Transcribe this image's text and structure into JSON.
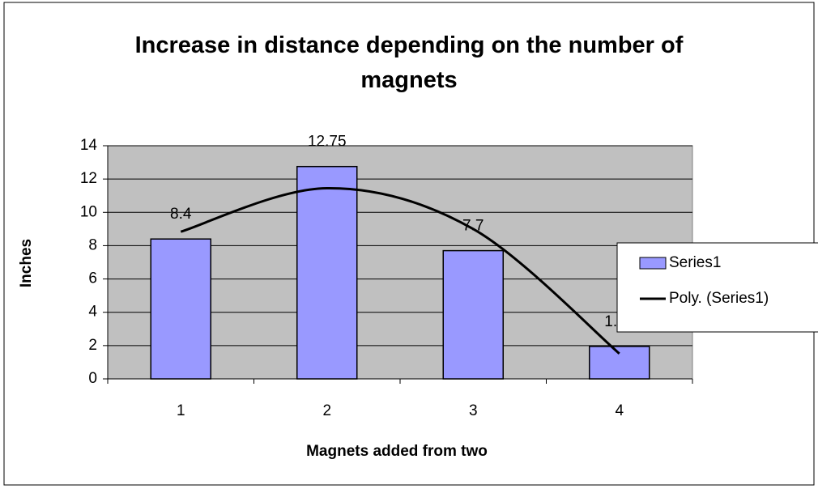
{
  "chart_data": {
    "type": "bar",
    "title": "Increase in distance depending on the number of magnets",
    "x_label": "Magnets added from two",
    "y_label": "Inches",
    "categories": [
      "1",
      "2",
      "3",
      "4"
    ],
    "series": [
      {
        "name": "Series1",
        "color": "#9999ff",
        "values": [
          8.4,
          12.75,
          7.7,
          1.95
        ]
      },
      {
        "name": "Poly. (Series1)",
        "color": "#000000",
        "type": "line",
        "values": [
          8.84,
          11.45,
          9.0,
          1.52
        ]
      }
    ],
    "ylim": [
      0,
      14
    ],
    "yticks": [
      0,
      2,
      4,
      6,
      8,
      10,
      12,
      14
    ],
    "grid": true,
    "legend": "right"
  }
}
